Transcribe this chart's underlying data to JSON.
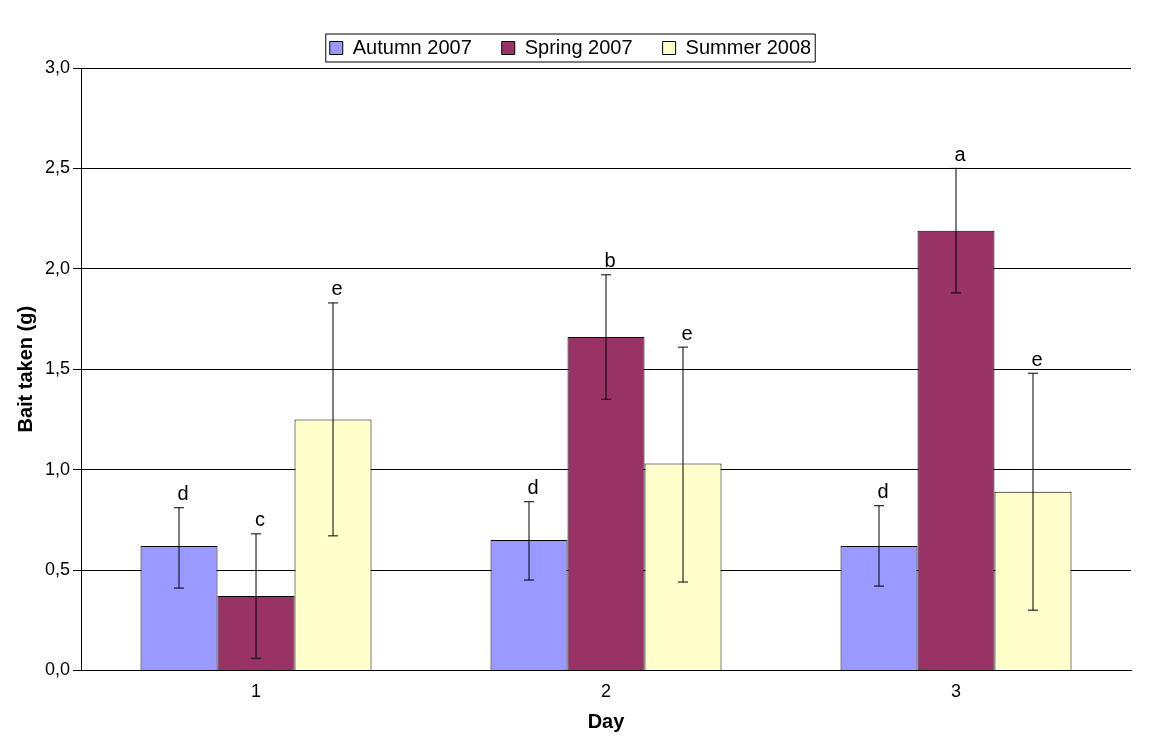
{
  "chart_data": {
    "type": "bar",
    "xlabel": "Day",
    "ylabel": "Bait taken (g)",
    "categories": [
      "1",
      "2",
      "3"
    ],
    "series": [
      {
        "name": "Autumn 2007",
        "color": "#9999ff",
        "values": [
          0.62,
          0.65,
          0.62
        ],
        "errors": [
          [
            0.41,
            0.81
          ],
          [
            0.45,
            0.84
          ],
          [
            0.42,
            0.82
          ]
        ]
      },
      {
        "name": "Spring 2007",
        "color": "#993366",
        "values": [
          0.37,
          1.66,
          2.19
        ],
        "errors": [
          [
            0.06,
            0.68
          ],
          [
            1.35,
            1.97
          ],
          [
            1.88,
            2.5
          ]
        ]
      },
      {
        "name": "Summer 2008",
        "color": "#ffffcc",
        "values": [
          1.25,
          1.03,
          0.89
        ],
        "errors": [
          [
            0.67,
            1.83
          ],
          [
            0.44,
            1.61
          ],
          [
            0.3,
            1.48
          ]
        ]
      }
    ],
    "ylim": [
      0,
      3
    ],
    "yticks": [
      {
        "value": 0,
        "label": "0,0"
      },
      {
        "value": 0.5,
        "label": "0,5"
      },
      {
        "value": 1,
        "label": "1,0"
      },
      {
        "value": 1.5,
        "label": "1,5"
      },
      {
        "value": 2,
        "label": "2,0"
      },
      {
        "value": 2.5,
        "label": "2,5"
      },
      {
        "value": 3,
        "label": "3,0"
      }
    ],
    "grid": "y",
    "legend": "top",
    "annotations": [
      "d",
      "c",
      "e",
      "d",
      "b",
      "e",
      "d",
      "a",
      "e"
    ]
  }
}
